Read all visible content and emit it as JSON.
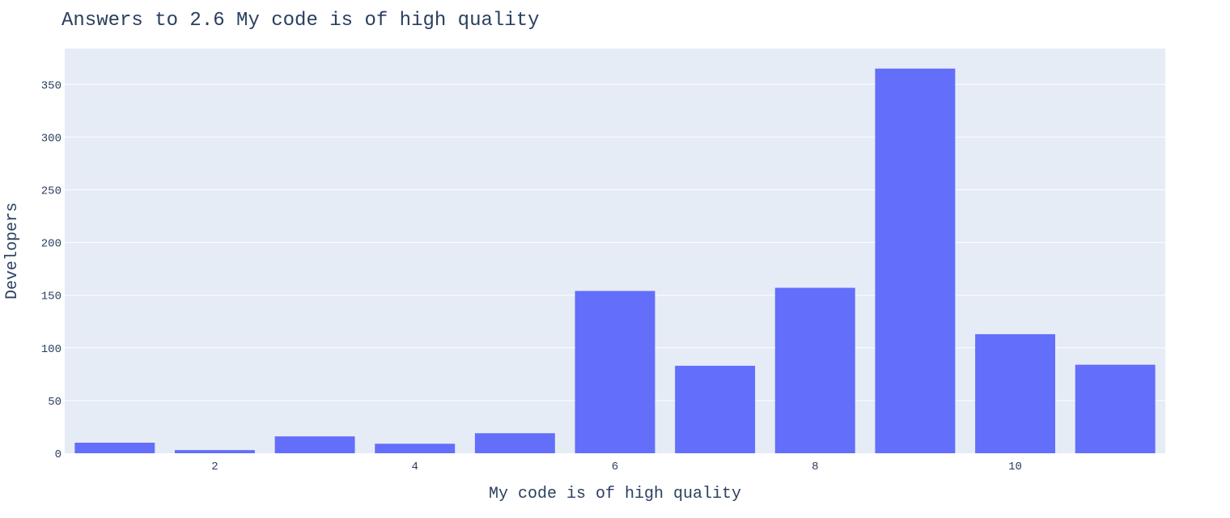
{
  "chart_data": {
    "type": "bar",
    "title": "Answers to 2.6 My code is of high quality",
    "xlabel": "My code is of high quality",
    "ylabel": "Developers",
    "x": [
      1,
      2,
      3,
      4,
      5,
      6,
      7,
      8,
      9,
      10,
      11
    ],
    "values": [
      10,
      3,
      16,
      9,
      19,
      154,
      83,
      157,
      365,
      113,
      84
    ],
    "x_ticks": [
      2,
      4,
      6,
      8,
      10
    ],
    "y_ticks": [
      0,
      50,
      100,
      150,
      200,
      250,
      300,
      350
    ],
    "xlim": [
      0.5,
      11.5
    ],
    "ylim": [
      0,
      384
    ],
    "grid": true,
    "colors": {
      "bar": "#636efa",
      "plot_bg": "#e5ecf6",
      "grid": "#ffffff",
      "text": "#2a3f5f"
    }
  }
}
